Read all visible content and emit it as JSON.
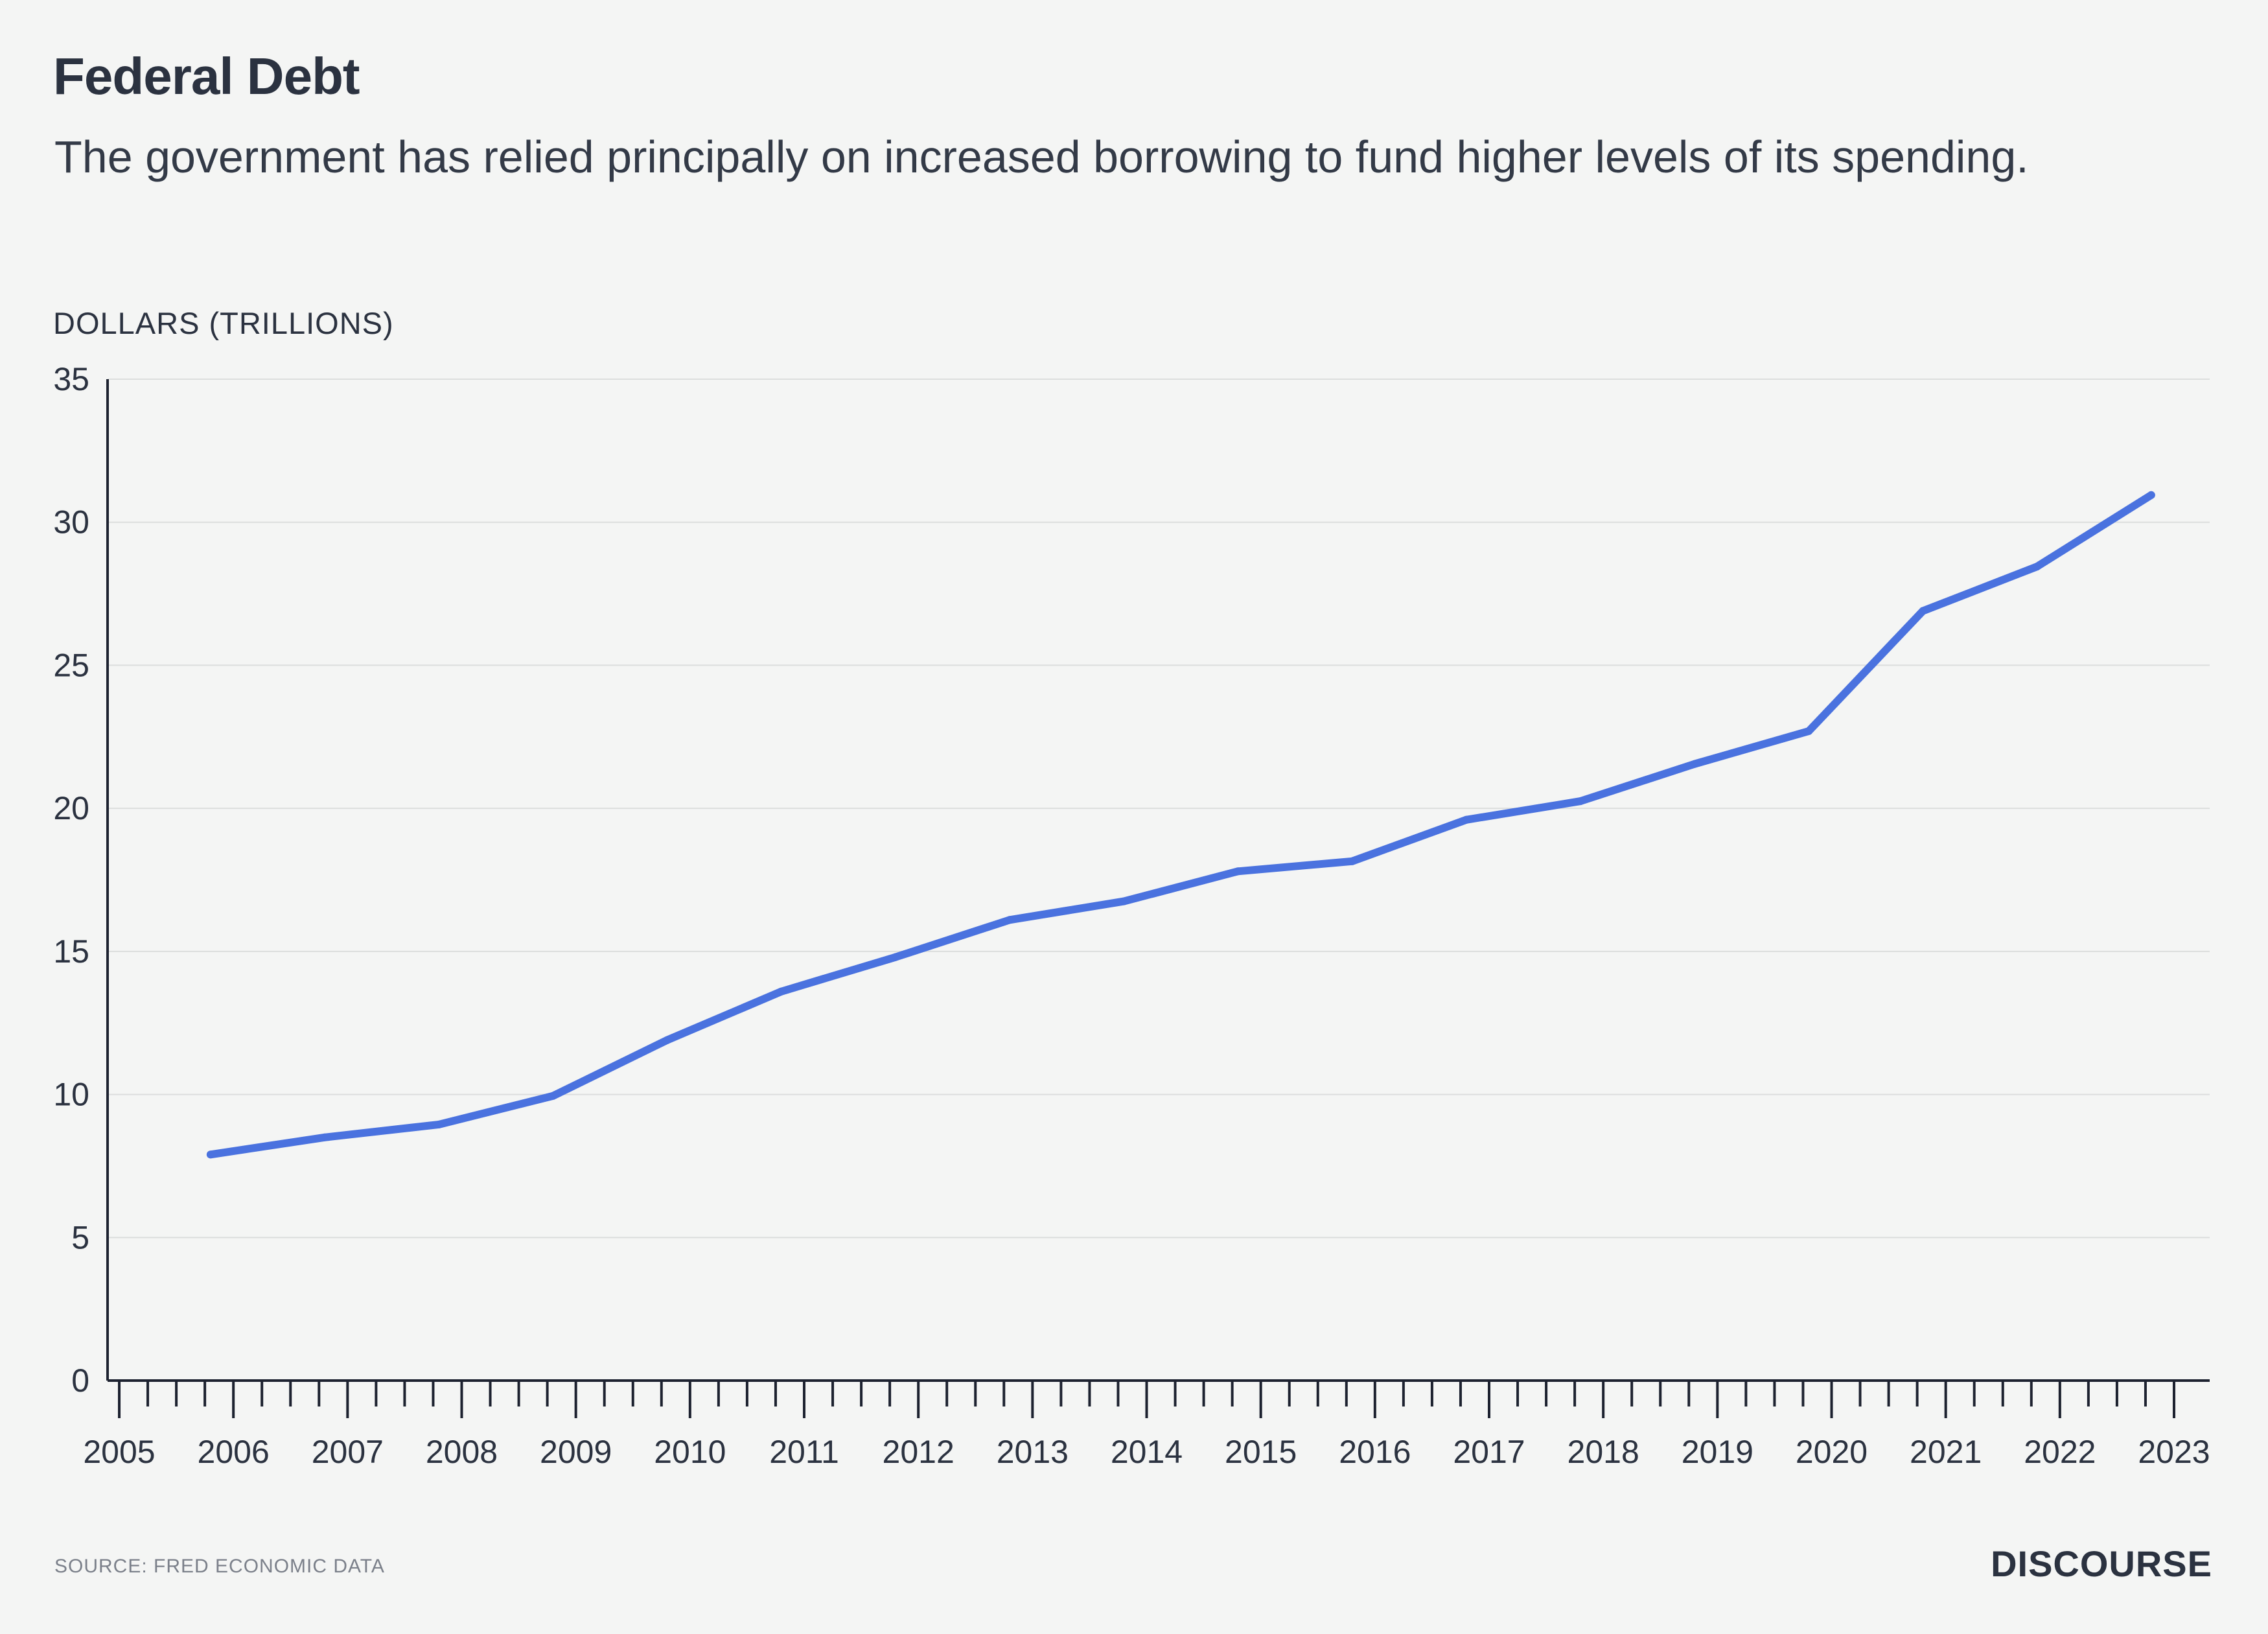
{
  "header": {
    "title": "Federal Debt",
    "subtitle": "The government has relied principally on increased borrowing to fund higher levels of its spending."
  },
  "footer": {
    "source": "SOURCE: FRED ECONOMIC DATA",
    "brand": "DISCOURSE"
  },
  "colors": {
    "line": "#4a72df",
    "grid": "#dcdedd",
    "axis": "#1d2230",
    "text": "#2b3240"
  },
  "chart_data": {
    "type": "line",
    "title": "Federal Debt",
    "subtitle": "The government has relied principally on increased borrowing to fund higher levels of its spending.",
    "ylabel": "DOLLARS (TRILLIONS)",
    "xlabel": "",
    "ylim": [
      0,
      35
    ],
    "yticks": [
      0,
      5,
      10,
      15,
      20,
      25,
      30,
      35
    ],
    "xlim": [
      2005,
      2023.6
    ],
    "xticks": [
      "2005",
      "2006",
      "2007",
      "2008",
      "2009",
      "2010",
      "2011",
      "2012",
      "2013",
      "2014",
      "2015",
      "2016",
      "2017",
      "2018",
      "2019",
      "2020",
      "2021",
      "2022",
      "2023"
    ],
    "grid": true,
    "series": [
      {
        "x": [
          2005.8,
          2006.8,
          2007.8,
          2008.8,
          2009.8,
          2010.8,
          2011.8,
          2012.8,
          2013.8,
          2014.8,
          2015.8,
          2016.8,
          2017.8,
          2018.8,
          2019.8,
          2020.8,
          2021.8,
          2022.8
        ],
        "y": [
          7.9,
          8.5,
          8.95,
          9.95,
          11.9,
          13.6,
          14.8,
          16.1,
          16.75,
          17.8,
          18.15,
          19.6,
          20.25,
          21.55,
          22.7,
          26.9,
          28.45,
          30.95
        ]
      }
    ]
  }
}
